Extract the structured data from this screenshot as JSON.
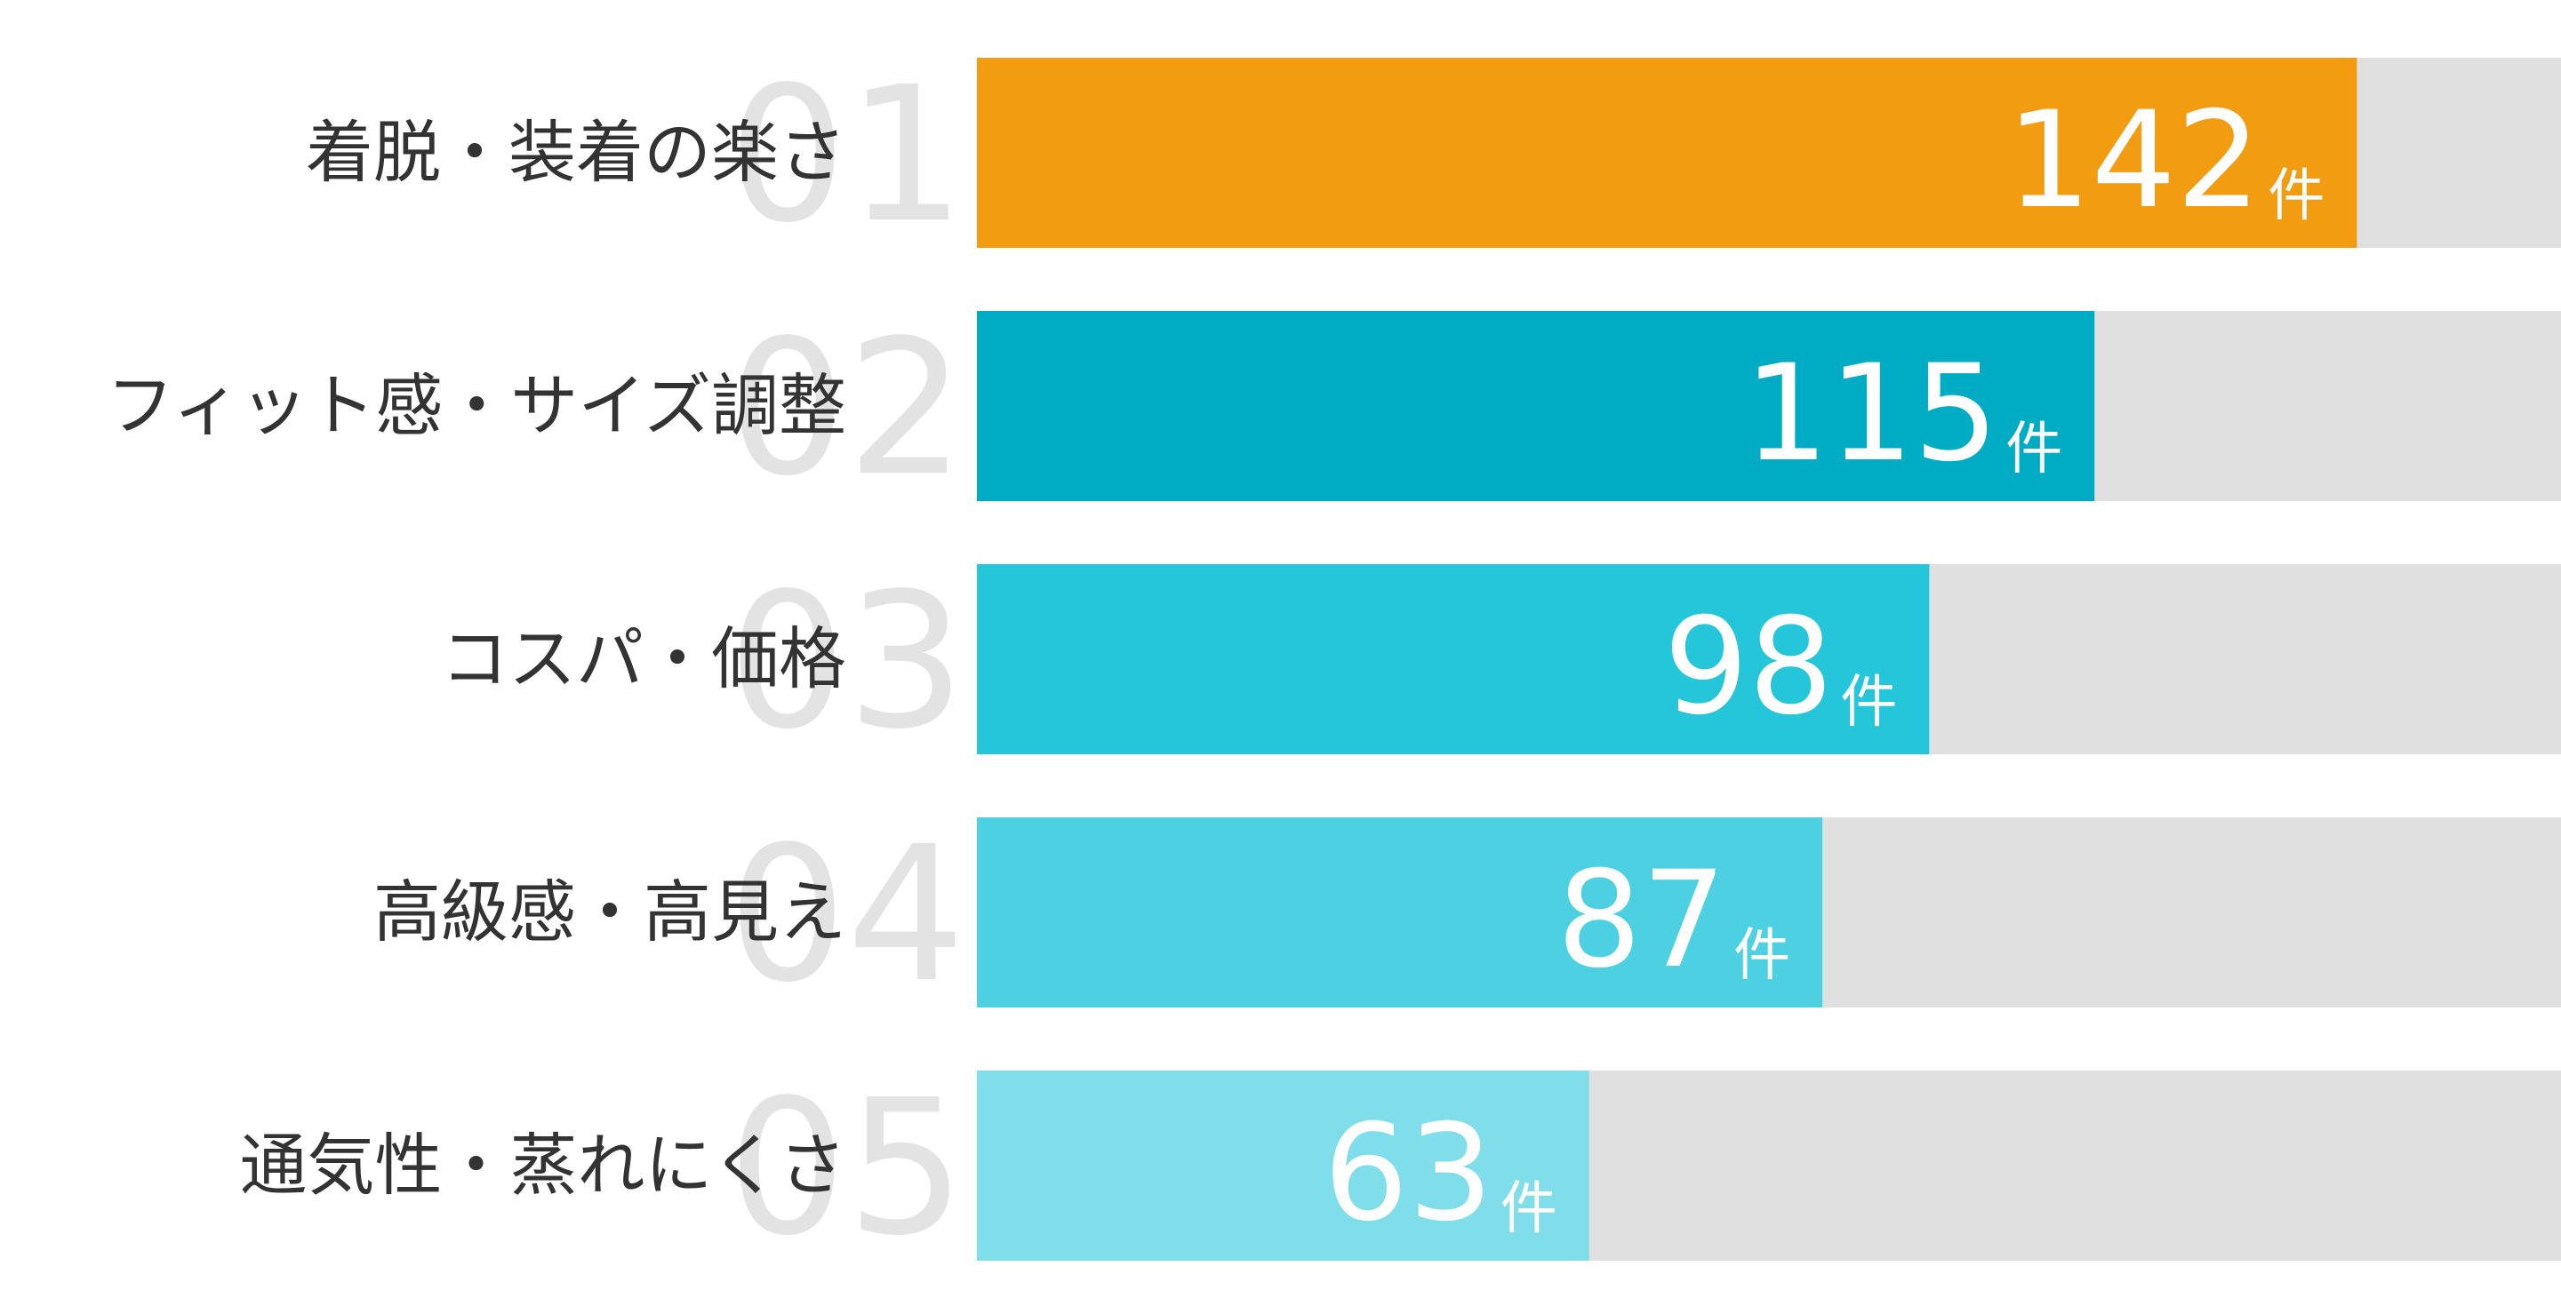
{
  "chart_data": {
    "type": "bar",
    "orientation": "horizontal",
    "ranks": [
      "01",
      "02",
      "03",
      "04",
      "05"
    ],
    "categories": [
      "着脱・装着の楽さ",
      "フィット感・サイズ調整",
      "コスパ・価格",
      "高級感・高見え",
      "通気性・蒸れにくさ"
    ],
    "values": [
      142,
      115,
      98,
      87,
      63
    ],
    "unit": "件",
    "colors": [
      "#f29c12",
      "#00acc3",
      "#26c6da",
      "#4dd0e1",
      "#80deea"
    ],
    "track_color": "#e0e0e0",
    "xlim": [
      0,
      163
    ]
  }
}
